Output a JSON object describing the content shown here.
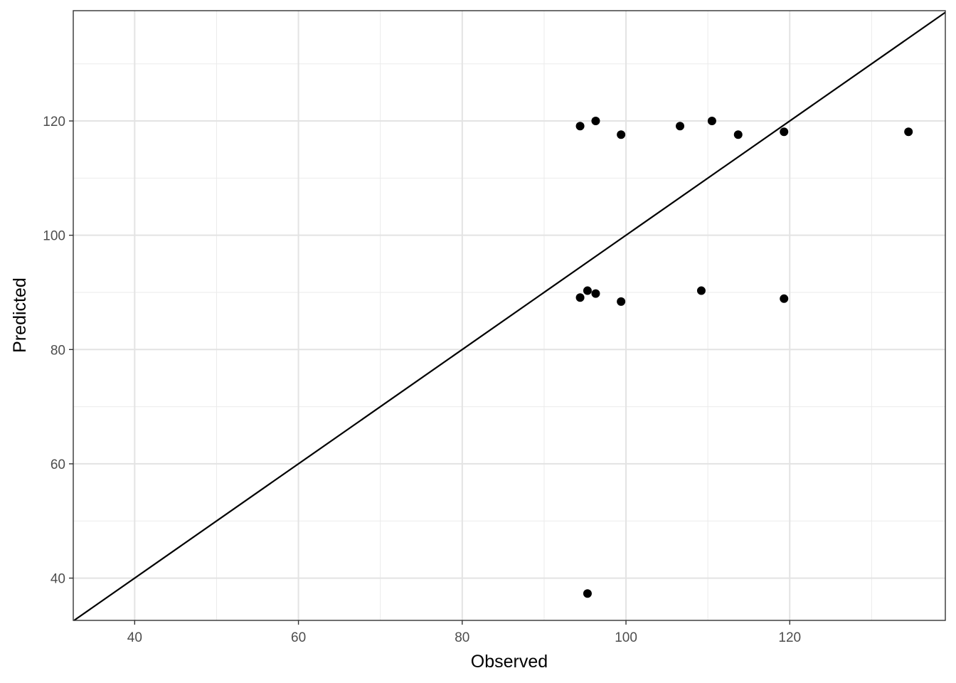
{
  "chart_data": {
    "type": "scatter",
    "title": "",
    "xlabel": "Observed",
    "ylabel": "Predicted",
    "xlim": [
      32.5,
      139.0
    ],
    "ylim": [
      32.6,
      139.3
    ],
    "x_ticks": [
      40,
      60,
      80,
      100,
      120
    ],
    "y_ticks": [
      40,
      60,
      80,
      100,
      120
    ],
    "x_tick_labels": [
      "40",
      "60",
      "80",
      "100",
      "120"
    ],
    "y_tick_labels": [
      "40",
      "60",
      "80",
      "100",
      "120"
    ],
    "grid": true,
    "reference_line": "y = x",
    "point_color": "#000000",
    "points": [
      {
        "x": 94.4,
        "y": 119.1
      },
      {
        "x": 96.3,
        "y": 120.0
      },
      {
        "x": 99.4,
        "y": 117.6
      },
      {
        "x": 106.6,
        "y": 119.1
      },
      {
        "x": 110.5,
        "y": 120.0
      },
      {
        "x": 113.7,
        "y": 117.6
      },
      {
        "x": 119.3,
        "y": 118.1
      },
      {
        "x": 134.5,
        "y": 118.1
      },
      {
        "x": 94.4,
        "y": 89.1
      },
      {
        "x": 95.3,
        "y": 90.3
      },
      {
        "x": 96.3,
        "y": 89.8
      },
      {
        "x": 99.4,
        "y": 88.4
      },
      {
        "x": 109.2,
        "y": 90.3
      },
      {
        "x": 119.3,
        "y": 88.9
      },
      {
        "x": 95.3,
        "y": 37.3
      }
    ]
  }
}
